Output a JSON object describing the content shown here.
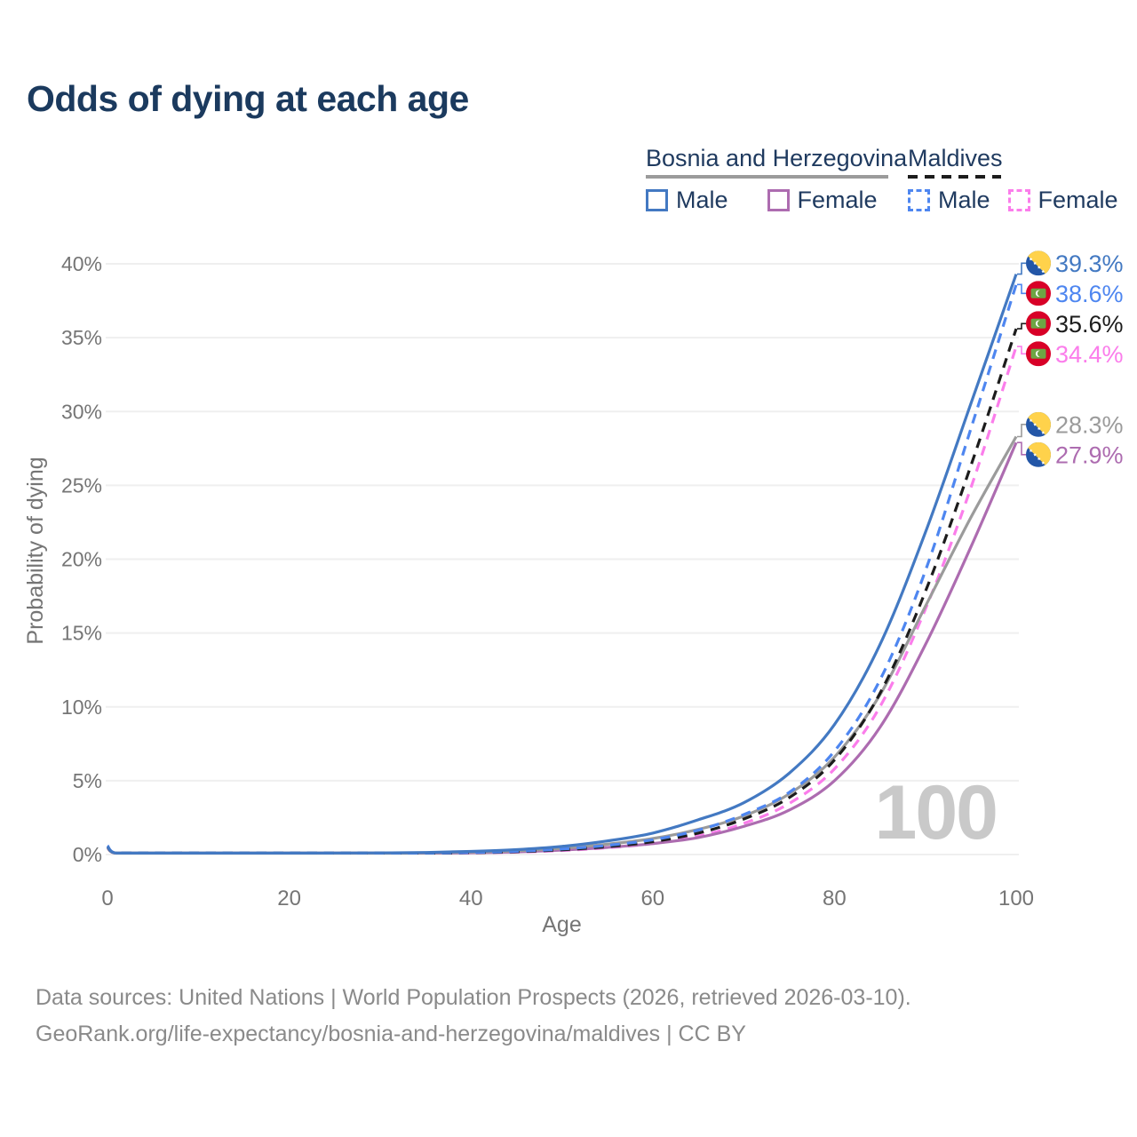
{
  "title": "Odds of dying at each age",
  "colors": {
    "bih_male": "#4379c2",
    "bih_female": "#ad6cb0",
    "bih_total": "#9b9b9b",
    "mdv_male": "#4e86f0",
    "mdv_female": "#fb7deb",
    "mdv_total": "#1c1c1c",
    "title_text": "#1b3a5e",
    "axis_text": "#757575",
    "grid": "#efefef",
    "footer_text": "#8a8a8a",
    "watermark": "#c9c9c9"
  },
  "legend": {
    "groups": [
      {
        "key": "bih",
        "label": "Bosnia and Herzegovina",
        "line_style": "solid",
        "line_color_key": "bih_total",
        "items": [
          {
            "key": "bih_male",
            "label": "Male",
            "style": "solid"
          },
          {
            "key": "bih_female",
            "label": "Female",
            "style": "solid"
          }
        ]
      },
      {
        "key": "mdv",
        "label": "Maldives",
        "line_style": "dashed",
        "line_color_key": "mdv_total",
        "items": [
          {
            "key": "mdv_male",
            "label": "Male",
            "style": "dashed"
          },
          {
            "key": "mdv_female",
            "label": "Female",
            "style": "dashed"
          }
        ]
      }
    ]
  },
  "chart_data": {
    "type": "line",
    "title": "Odds of dying at each age",
    "xlabel": "Age",
    "ylabel": "Probability of dying",
    "x_ticks": [
      0,
      20,
      40,
      60,
      80,
      100
    ],
    "y_ticks_pct": [
      0,
      5,
      10,
      15,
      20,
      25,
      30,
      35,
      40
    ],
    "y_tick_suffix": "%",
    "xlim": [
      0,
      100
    ],
    "ylim_pct": [
      0,
      40
    ],
    "grid": "horizontal",
    "legend_position": "top-right",
    "watermark": "100",
    "ages": [
      0,
      1,
      5,
      10,
      15,
      20,
      25,
      30,
      35,
      40,
      45,
      50,
      55,
      60,
      65,
      70,
      75,
      80,
      85,
      90,
      95,
      100
    ],
    "series": [
      {
        "id": "mdv_female",
        "name": "Maldives Female",
        "country": "Maldives",
        "sex": "Female",
        "flag": "maldives",
        "color_key": "mdv_female",
        "dashed": true,
        "end_label": "34.4%",
        "end_value_pct": 34.4,
        "values_pct": [
          0.5,
          0.04,
          0.02,
          0.02,
          0.03,
          0.04,
          0.05,
          0.06,
          0.08,
          0.11,
          0.16,
          0.27,
          0.46,
          0.74,
          1.25,
          2.1,
          3.45,
          5.8,
          10.0,
          16.6,
          24.8,
          34.4
        ]
      },
      {
        "id": "bih_female",
        "name": "Bosnia and Herzegovina Female",
        "country": "Bosnia and Herzegovina",
        "sex": "Female",
        "flag": "bosnia",
        "color_key": "bih_female",
        "dashed": false,
        "end_label": "27.9%",
        "end_value_pct": 27.9,
        "values_pct": [
          0.45,
          0.04,
          0.015,
          0.015,
          0.03,
          0.04,
          0.045,
          0.05,
          0.08,
          0.12,
          0.18,
          0.3,
          0.48,
          0.74,
          1.15,
          1.9,
          3.0,
          5.0,
          8.6,
          14.2,
          20.8,
          27.9
        ]
      },
      {
        "id": "bih_total",
        "name": "Bosnia and Herzegovina Total",
        "country": "Bosnia and Herzegovina",
        "sex": "Both",
        "flag": "bosnia",
        "color_key": "bih_total",
        "dashed": false,
        "end_label": "28.3%",
        "end_value_pct": 28.3,
        "values_pct": [
          0.5,
          0.04,
          0.02,
          0.02,
          0.04,
          0.06,
          0.07,
          0.08,
          0.11,
          0.16,
          0.25,
          0.42,
          0.7,
          1.08,
          1.7,
          2.6,
          4.1,
          6.6,
          10.8,
          16.8,
          22.8,
          28.3
        ]
      },
      {
        "id": "mdv_total",
        "name": "Maldives Total",
        "country": "Maldives",
        "sex": "Both",
        "flag": "maldives",
        "color_key": "mdv_total",
        "dashed": true,
        "end_label": "35.6%",
        "end_value_pct": 35.6,
        "values_pct": [
          0.55,
          0.05,
          0.02,
          0.02,
          0.035,
          0.05,
          0.06,
          0.07,
          0.09,
          0.125,
          0.19,
          0.32,
          0.54,
          0.87,
          1.45,
          2.4,
          3.85,
          6.4,
          10.9,
          17.8,
          26.3,
          35.6
        ]
      },
      {
        "id": "mdv_male",
        "name": "Maldives Male",
        "country": "Maldives",
        "sex": "Male",
        "flag": "maldives",
        "color_key": "mdv_male",
        "dashed": true,
        "end_label": "38.6%",
        "end_value_pct": 38.6,
        "values_pct": [
          0.6,
          0.05,
          0.02,
          0.02,
          0.04,
          0.06,
          0.07,
          0.08,
          0.1,
          0.14,
          0.22,
          0.37,
          0.62,
          1.0,
          1.65,
          2.7,
          4.2,
          7.0,
          11.8,
          19.2,
          28.8,
          38.6
        ]
      },
      {
        "id": "bih_male",
        "name": "Bosnia and Herzegovina Male",
        "country": "Bosnia and Herzegovina",
        "sex": "Male",
        "flag": "bosnia",
        "color_key": "bih_male",
        "dashed": false,
        "end_label": "39.3%",
        "end_value_pct": 39.3,
        "values_pct": [
          0.55,
          0.05,
          0.02,
          0.02,
          0.05,
          0.09,
          0.1,
          0.11,
          0.14,
          0.21,
          0.33,
          0.55,
          0.92,
          1.45,
          2.35,
          3.5,
          5.5,
          8.8,
          14.2,
          21.8,
          30.5,
          39.3
        ]
      }
    ]
  },
  "footer": {
    "line1": "Data sources: United Nations | World Population Prospects (2026, retrieved 2026-03-10).",
    "line2": "GeoRank.org/life-expectancy/bosnia-and-herzegovina/maldives | CC BY"
  }
}
